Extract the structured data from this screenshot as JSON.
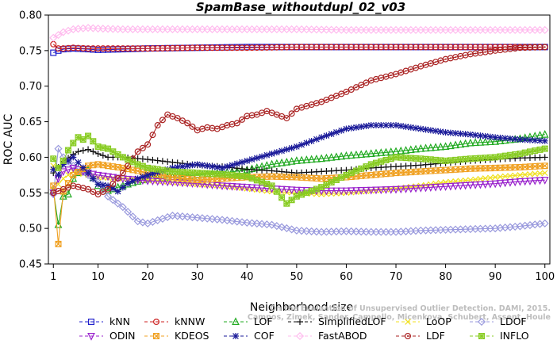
{
  "chart_data": {
    "type": "line",
    "title": "SpamBase_withoutdupl_02_v03",
    "xlabel": "Neighborhood size",
    "ylabel": "ROC AUC",
    "xlim": [
      0,
      101
    ],
    "ylim": [
      0.45,
      0.8
    ],
    "xticks": [
      1,
      10,
      20,
      30,
      40,
      50,
      60,
      70,
      80,
      90,
      100
    ],
    "yticks": [
      0.45,
      0.5,
      0.55,
      0.6,
      0.65,
      0.7,
      0.75,
      0.8
    ],
    "ytick_labels": [
      "0.45",
      "0.50",
      "0.55",
      "0.60",
      "0.65",
      "0.70",
      "0.75",
      "0.80"
    ],
    "grid": false,
    "legend_position": "bottom",
    "watermark": [
      "Campos, Zimek, Sander, Campello, Micenkova, Schubert, Assent, Houle",
      "On the Evaluation of Unsupervised Outlier Detection. DAMI, 2015."
    ],
    "series": [
      {
        "name": "kNN",
        "color": "#2222cc",
        "marker": "square",
        "points": [
          [
            1,
            0.747
          ],
          [
            2,
            0.75
          ],
          [
            3,
            0.752
          ],
          [
            5,
            0.753
          ],
          [
            8,
            0.752
          ],
          [
            10,
            0.751
          ],
          [
            15,
            0.752
          ],
          [
            20,
            0.753
          ],
          [
            30,
            0.754
          ],
          [
            40,
            0.755
          ],
          [
            50,
            0.755
          ],
          [
            60,
            0.755
          ],
          [
            70,
            0.755
          ],
          [
            80,
            0.755
          ],
          [
            90,
            0.755
          ],
          [
            100,
            0.755
          ]
        ]
      },
      {
        "name": "kNNW",
        "color": "#cc2222",
        "marker": "circle",
        "points": [
          [
            1,
            0.759
          ],
          [
            2,
            0.753
          ],
          [
            3,
            0.753
          ],
          [
            5,
            0.754
          ],
          [
            8,
            0.753
          ],
          [
            10,
            0.753
          ],
          [
            15,
            0.753
          ],
          [
            20,
            0.753
          ],
          [
            30,
            0.754
          ],
          [
            40,
            0.754
          ],
          [
            50,
            0.755
          ],
          [
            60,
            0.755
          ],
          [
            70,
            0.755
          ],
          [
            80,
            0.755
          ],
          [
            90,
            0.755
          ],
          [
            100,
            0.755
          ]
        ]
      },
      {
        "name": "LOF",
        "color": "#22aa22",
        "marker": "triangle-up",
        "points": [
          [
            1,
            0.553
          ],
          [
            2,
            0.505
          ],
          [
            3,
            0.545
          ],
          [
            4,
            0.548
          ],
          [
            5,
            0.57
          ],
          [
            6,
            0.578
          ],
          [
            8,
            0.582
          ],
          [
            10,
            0.56
          ],
          [
            12,
            0.553
          ],
          [
            15,
            0.56
          ],
          [
            20,
            0.57
          ],
          [
            25,
            0.572
          ],
          [
            30,
            0.575
          ],
          [
            35,
            0.578
          ],
          [
            40,
            0.582
          ],
          [
            45,
            0.59
          ],
          [
            50,
            0.595
          ],
          [
            55,
            0.598
          ],
          [
            60,
            0.602
          ],
          [
            65,
            0.605
          ],
          [
            70,
            0.608
          ],
          [
            75,
            0.612
          ],
          [
            80,
            0.615
          ],
          [
            85,
            0.62
          ],
          [
            90,
            0.622
          ],
          [
            95,
            0.626
          ],
          [
            100,
            0.632
          ]
        ]
      },
      {
        "name": "SimplifiedLOF",
        "color": "#111111",
        "marker": "plus",
        "points": [
          [
            1,
            0.578
          ],
          [
            2,
            0.586
          ],
          [
            3,
            0.594
          ],
          [
            4,
            0.599
          ],
          [
            5,
            0.604
          ],
          [
            6,
            0.608
          ],
          [
            8,
            0.611
          ],
          [
            10,
            0.605
          ],
          [
            12,
            0.6
          ],
          [
            15,
            0.6
          ],
          [
            20,
            0.597
          ],
          [
            25,
            0.593
          ],
          [
            30,
            0.589
          ],
          [
            35,
            0.587
          ],
          [
            40,
            0.583
          ],
          [
            45,
            0.581
          ],
          [
            50,
            0.578
          ],
          [
            55,
            0.58
          ],
          [
            60,
            0.582
          ],
          [
            65,
            0.585
          ],
          [
            70,
            0.587
          ],
          [
            75,
            0.589
          ],
          [
            80,
            0.592
          ],
          [
            85,
            0.595
          ],
          [
            90,
            0.597
          ],
          [
            95,
            0.599
          ],
          [
            100,
            0.6
          ]
        ]
      },
      {
        "name": "LoOP",
        "color": "#f0e020",
        "marker": "x",
        "points": [
          [
            1,
            0.588
          ],
          [
            2,
            0.562
          ],
          [
            3,
            0.57
          ],
          [
            5,
            0.58
          ],
          [
            8,
            0.575
          ],
          [
            10,
            0.572
          ],
          [
            15,
            0.57
          ],
          [
            20,
            0.568
          ],
          [
            25,
            0.565
          ],
          [
            30,
            0.562
          ],
          [
            35,
            0.56
          ],
          [
            40,
            0.556
          ],
          [
            45,
            0.552
          ],
          [
            50,
            0.55
          ],
          [
            55,
            0.548
          ],
          [
            60,
            0.55
          ],
          [
            65,
            0.553
          ],
          [
            70,
            0.556
          ],
          [
            75,
            0.56
          ],
          [
            80,
            0.565
          ],
          [
            85,
            0.568
          ],
          [
            90,
            0.572
          ],
          [
            95,
            0.575
          ],
          [
            100,
            0.578
          ]
        ]
      },
      {
        "name": "LDOF",
        "color": "#9999dd",
        "marker": "diamond",
        "points": [
          [
            1,
            0.548
          ],
          [
            2,
            0.612
          ],
          [
            3,
            0.6
          ],
          [
            5,
            0.588
          ],
          [
            8,
            0.575
          ],
          [
            10,
            0.565
          ],
          [
            12,
            0.545
          ],
          [
            15,
            0.53
          ],
          [
            18,
            0.51
          ],
          [
            20,
            0.507
          ],
          [
            25,
            0.518
          ],
          [
            30,
            0.515
          ],
          [
            35,
            0.512
          ],
          [
            40,
            0.508
          ],
          [
            45,
            0.505
          ],
          [
            50,
            0.497
          ],
          [
            55,
            0.495
          ],
          [
            60,
            0.496
          ],
          [
            65,
            0.495
          ],
          [
            70,
            0.495
          ],
          [
            75,
            0.497
          ],
          [
            80,
            0.498
          ],
          [
            85,
            0.499
          ],
          [
            90,
            0.5
          ],
          [
            95,
            0.503
          ],
          [
            100,
            0.507
          ]
        ]
      },
      {
        "name": "ODIN",
        "color": "#9922cc",
        "marker": "triangle-down",
        "points": [
          [
            1,
            0.55
          ],
          [
            2,
            0.57
          ],
          [
            3,
            0.58
          ],
          [
            5,
            0.585
          ],
          [
            8,
            0.578
          ],
          [
            10,
            0.575
          ],
          [
            15,
            0.57
          ],
          [
            20,
            0.567
          ],
          [
            25,
            0.565
          ],
          [
            30,
            0.563
          ],
          [
            35,
            0.56
          ],
          [
            40,
            0.558
          ],
          [
            45,
            0.556
          ],
          [
            50,
            0.554
          ],
          [
            55,
            0.553
          ],
          [
            60,
            0.553
          ],
          [
            65,
            0.554
          ],
          [
            70,
            0.555
          ],
          [
            75,
            0.557
          ],
          [
            80,
            0.559
          ],
          [
            85,
            0.561
          ],
          [
            90,
            0.563
          ],
          [
            95,
            0.566
          ],
          [
            100,
            0.568
          ]
        ]
      },
      {
        "name": "KDEOS",
        "color": "#f0a020",
        "marker": "square-x",
        "points": [
          [
            1,
            0.56
          ],
          [
            2,
            0.478
          ],
          [
            3,
            0.552
          ],
          [
            5,
            0.575
          ],
          [
            8,
            0.588
          ],
          [
            10,
            0.59
          ],
          [
            15,
            0.585
          ],
          [
            20,
            0.578
          ],
          [
            25,
            0.572
          ],
          [
            30,
            0.568
          ],
          [
            35,
            0.57
          ],
          [
            40,
            0.572
          ],
          [
            45,
            0.573
          ],
          [
            50,
            0.572
          ],
          [
            55,
            0.57
          ],
          [
            60,
            0.572
          ],
          [
            65,
            0.575
          ],
          [
            70,
            0.578
          ],
          [
            75,
            0.58
          ],
          [
            80,
            0.582
          ],
          [
            85,
            0.584
          ],
          [
            90,
            0.585
          ],
          [
            95,
            0.586
          ],
          [
            100,
            0.588
          ]
        ]
      },
      {
        "name": "COF",
        "color": "#1a1a99",
        "marker": "star",
        "points": [
          [
            1,
            0.583
          ],
          [
            2,
            0.575
          ],
          [
            3,
            0.59
          ],
          [
            5,
            0.6
          ],
          [
            8,
            0.578
          ],
          [
            10,
            0.562
          ],
          [
            12,
            0.56
          ],
          [
            14,
            0.552
          ],
          [
            16,
            0.563
          ],
          [
            18,
            0.57
          ],
          [
            20,
            0.575
          ],
          [
            25,
            0.585
          ],
          [
            30,
            0.59
          ],
          [
            35,
            0.585
          ],
          [
            40,
            0.595
          ],
          [
            45,
            0.605
          ],
          [
            50,
            0.615
          ],
          [
            55,
            0.628
          ],
          [
            60,
            0.64
          ],
          [
            65,
            0.645
          ],
          [
            70,
            0.645
          ],
          [
            75,
            0.64
          ],
          [
            80,
            0.635
          ],
          [
            85,
            0.632
          ],
          [
            90,
            0.628
          ],
          [
            95,
            0.625
          ],
          [
            100,
            0.623
          ]
        ]
      },
      {
        "name": "FastABOD",
        "color": "#ffbbee",
        "marker": "diamond",
        "points": [
          [
            1,
            0.768
          ],
          [
            2,
            0.772
          ],
          [
            3,
            0.776
          ],
          [
            5,
            0.78
          ],
          [
            8,
            0.782
          ],
          [
            10,
            0.781
          ],
          [
            15,
            0.78
          ],
          [
            20,
            0.78
          ],
          [
            30,
            0.78
          ],
          [
            40,
            0.78
          ],
          [
            50,
            0.78
          ],
          [
            60,
            0.779
          ],
          [
            70,
            0.779
          ],
          [
            80,
            0.779
          ],
          [
            90,
            0.779
          ],
          [
            100,
            0.779
          ]
        ]
      },
      {
        "name": "LDF",
        "color": "#aa2222",
        "marker": "circle-dot",
        "points": [
          [
            1,
            0.55
          ],
          [
            3,
            0.555
          ],
          [
            5,
            0.56
          ],
          [
            8,
            0.555
          ],
          [
            10,
            0.548
          ],
          [
            12,
            0.555
          ],
          [
            15,
            0.578
          ],
          [
            18,
            0.608
          ],
          [
            20,
            0.618
          ],
          [
            22,
            0.645
          ],
          [
            24,
            0.66
          ],
          [
            26,
            0.655
          ],
          [
            28,
            0.648
          ],
          [
            30,
            0.638
          ],
          [
            32,
            0.642
          ],
          [
            34,
            0.64
          ],
          [
            36,
            0.645
          ],
          [
            38,
            0.648
          ],
          [
            40,
            0.658
          ],
          [
            42,
            0.66
          ],
          [
            44,
            0.665
          ],
          [
            46,
            0.66
          ],
          [
            48,
            0.655
          ],
          [
            50,
            0.668
          ],
          [
            55,
            0.678
          ],
          [
            60,
            0.692
          ],
          [
            65,
            0.708
          ],
          [
            70,
            0.717
          ],
          [
            75,
            0.728
          ],
          [
            80,
            0.738
          ],
          [
            85,
            0.745
          ],
          [
            90,
            0.75
          ],
          [
            95,
            0.754
          ],
          [
            100,
            0.755
          ]
        ]
      },
      {
        "name": "INFLO",
        "color": "#88cc22",
        "marker": "square-star",
        "points": [
          [
            1,
            0.598
          ],
          [
            2,
            0.585
          ],
          [
            3,
            0.595
          ],
          [
            4,
            0.61
          ],
          [
            5,
            0.62
          ],
          [
            6,
            0.628
          ],
          [
            7,
            0.625
          ],
          [
            8,
            0.63
          ],
          [
            10,
            0.615
          ],
          [
            12,
            0.612
          ],
          [
            15,
            0.6
          ],
          [
            18,
            0.59
          ],
          [
            20,
            0.585
          ],
          [
            25,
            0.58
          ],
          [
            30,
            0.578
          ],
          [
            35,
            0.576
          ],
          [
            40,
            0.573
          ],
          [
            45,
            0.56
          ],
          [
            48,
            0.535
          ],
          [
            50,
            0.545
          ],
          [
            55,
            0.558
          ],
          [
            60,
            0.575
          ],
          [
            65,
            0.59
          ],
          [
            70,
            0.6
          ],
          [
            75,
            0.598
          ],
          [
            80,
            0.595
          ],
          [
            85,
            0.598
          ],
          [
            90,
            0.6
          ],
          [
            95,
            0.605
          ],
          [
            100,
            0.612
          ]
        ]
      }
    ],
    "legend_layout": [
      [
        "kNN",
        "kNNW",
        "LOF",
        "SimplifiedLOF",
        "LoOP",
        "LDOF"
      ],
      [
        "ODIN",
        "KDEOS",
        "COF",
        "FastABOD",
        "LDF",
        "INFLO"
      ]
    ]
  }
}
